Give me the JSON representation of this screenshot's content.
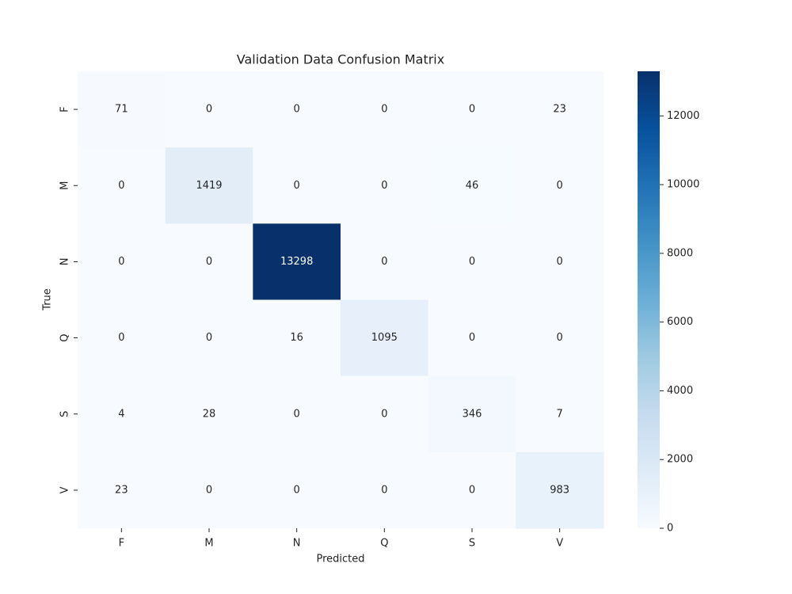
{
  "chart_data": {
    "type": "heatmap",
    "title": "Validation Data Confusion Matrix",
    "xlabel": "Predicted",
    "ylabel": "True",
    "x_categories": [
      "F",
      "M",
      "N",
      "Q",
      "S",
      "V"
    ],
    "y_categories": [
      "F",
      "M",
      "N",
      "Q",
      "S",
      "V"
    ],
    "values": [
      [
        71,
        0,
        0,
        0,
        0,
        23
      ],
      [
        0,
        1419,
        0,
        0,
        46,
        0
      ],
      [
        0,
        0,
        13298,
        0,
        0,
        0
      ],
      [
        0,
        0,
        16,
        1095,
        0,
        0
      ],
      [
        4,
        28,
        0,
        0,
        346,
        7
      ],
      [
        23,
        0,
        0,
        0,
        0,
        983
      ]
    ],
    "clim": [
      0,
      13298
    ],
    "cticks": [
      0,
      2000,
      4000,
      6000,
      8000,
      10000,
      12000
    ],
    "colors": [
      "#f7fbff",
      "#deebf7",
      "#c6dbef",
      "#9ecae1",
      "#6baed6",
      "#4292c6",
      "#2171b5",
      "#08519c",
      "#08306b"
    ]
  }
}
